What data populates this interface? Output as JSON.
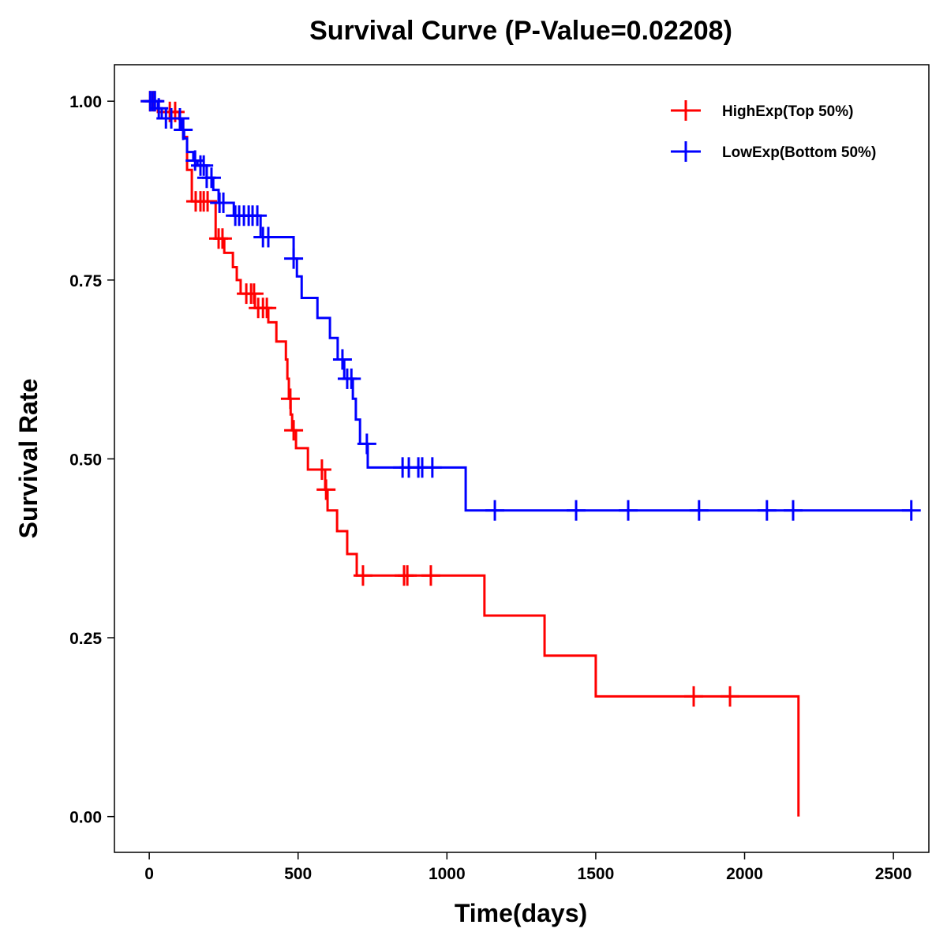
{
  "chart_data": {
    "type": "line",
    "title": "Survival Curve (P-Value=0.02208)",
    "xlabel": "Time(days)",
    "ylabel": "Survival Rate",
    "xlim": [
      -117,
      2619
    ],
    "ylim": [
      -0.05,
      1.051
    ],
    "xticks": [
      0,
      500,
      1000,
      1500,
      2000,
      2500
    ],
    "xtick_labels": [
      "0",
      "500",
      "1000",
      "1500",
      "2000",
      "2500"
    ],
    "yticks": [
      0,
      0.25,
      0.5,
      0.75,
      1.0
    ],
    "ytick_labels": [
      "0.00",
      "0.25",
      "0.50",
      "0.75",
      "1.00"
    ],
    "grid": false,
    "legend_position": "top-right",
    "series": [
      {
        "name": "HighExp(Top 50%)",
        "color": "#ff0000",
        "steps": [
          [
            0,
            1.0
          ],
          [
            29,
            0.985
          ],
          [
            101,
            0.975
          ],
          [
            114,
            0.95
          ],
          [
            127,
            0.904
          ],
          [
            143,
            0.86
          ],
          [
            223,
            0.808
          ],
          [
            252,
            0.788
          ],
          [
            281,
            0.768
          ],
          [
            294,
            0.75
          ],
          [
            307,
            0.731
          ],
          [
            355,
            0.711
          ],
          [
            400,
            0.691
          ],
          [
            427,
            0.664
          ],
          [
            459,
            0.639
          ],
          [
            464,
            0.612
          ],
          [
            469,
            0.584
          ],
          [
            475,
            0.562
          ],
          [
            480,
            0.54
          ],
          [
            493,
            0.515
          ],
          [
            533,
            0.485
          ],
          [
            591,
            0.457
          ],
          [
            599,
            0.428
          ],
          [
            631,
            0.399
          ],
          [
            665,
            0.367
          ],
          [
            697,
            0.337
          ],
          [
            1126,
            0.281
          ],
          [
            1328,
            0.225
          ],
          [
            1500,
            0.168
          ],
          [
            2181,
            0.0
          ]
        ],
        "end_time": 2181,
        "censored": [
          3,
          16,
          69,
          87,
          156,
          172,
          183,
          196,
          233,
          246,
          326,
          342,
          352,
          366,
          382,
          395,
          474,
          485,
          580,
          594,
          718,
          856,
          867,
          946,
          1829,
          1951
        ]
      },
      {
        "name": "LowExp(Bottom 50%)",
        "color": "#0000ff",
        "steps": [
          [
            0,
            1.0
          ],
          [
            29,
            0.99
          ],
          [
            42,
            0.976
          ],
          [
            109,
            0.96
          ],
          [
            117,
            0.948
          ],
          [
            127,
            0.929
          ],
          [
            148,
            0.917
          ],
          [
            162,
            0.91
          ],
          [
            193,
            0.893
          ],
          [
            215,
            0.876
          ],
          [
            233,
            0.858
          ],
          [
            284,
            0.84
          ],
          [
            374,
            0.81
          ],
          [
            485,
            0.78
          ],
          [
            496,
            0.755
          ],
          [
            512,
            0.725
          ],
          [
            565,
            0.697
          ],
          [
            607,
            0.669
          ],
          [
            633,
            0.639
          ],
          [
            655,
            0.612
          ],
          [
            684,
            0.584
          ],
          [
            694,
            0.555
          ],
          [
            708,
            0.521
          ],
          [
            734,
            0.488
          ],
          [
            1063,
            0.428
          ]
        ],
        "end_time": 2560,
        "censored": [
          3,
          11,
          19,
          32,
          56,
          74,
          103,
          114,
          154,
          172,
          183,
          193,
          209,
          236,
          249,
          289,
          302,
          318,
          334,
          347,
          363,
          382,
          400,
          485,
          649,
          665,
          679,
          731,
          851,
          872,
          904,
          917,
          951,
          1161,
          1434,
          1609,
          1847,
          2075,
          2163,
          2560
        ]
      }
    ]
  }
}
